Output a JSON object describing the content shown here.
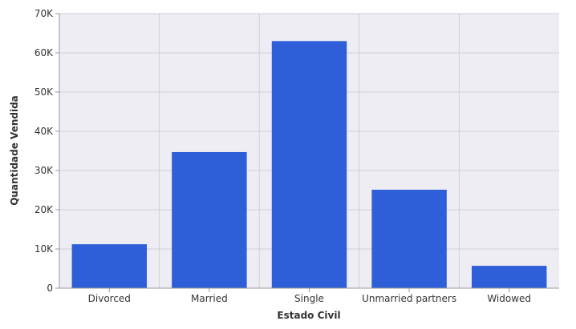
{
  "chart_data": {
    "type": "bar",
    "categories": [
      "Divorced",
      "Married",
      "Single",
      "Unmarried partners",
      "Widowed"
    ],
    "values": [
      11200,
      34700,
      63000,
      25100,
      5700
    ],
    "xlabel": "Estado Civil",
    "ylabel": "Quantidade Vendida",
    "ylim": [
      0,
      70000
    ],
    "yticks": [
      0,
      10000,
      20000,
      30000,
      40000,
      50000,
      60000,
      70000
    ],
    "ytick_labels": [
      "0",
      "10K",
      "20K",
      "30K",
      "40K",
      "50K",
      "60K",
      "70K"
    ],
    "grid": true,
    "bar_color": "#2f5fd8",
    "plot_background": "#eeedf3",
    "grid_color": "#cfcfd6"
  }
}
